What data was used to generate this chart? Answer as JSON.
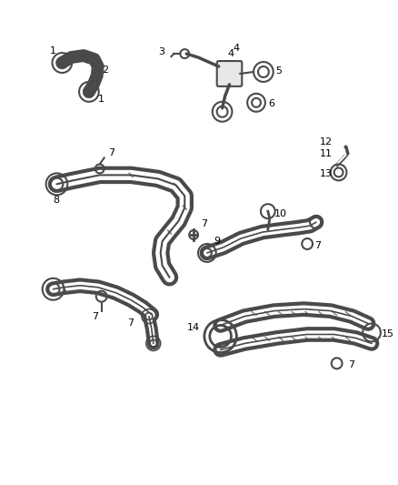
{
  "bg_color": "#ffffff",
  "line_color": "#4a4a4a",
  "label_color": "#000000",
  "lw_tube": 3.5,
  "lw_thin": 1.2,
  "figsize": [
    4.38,
    5.33
  ],
  "dpi": 100
}
